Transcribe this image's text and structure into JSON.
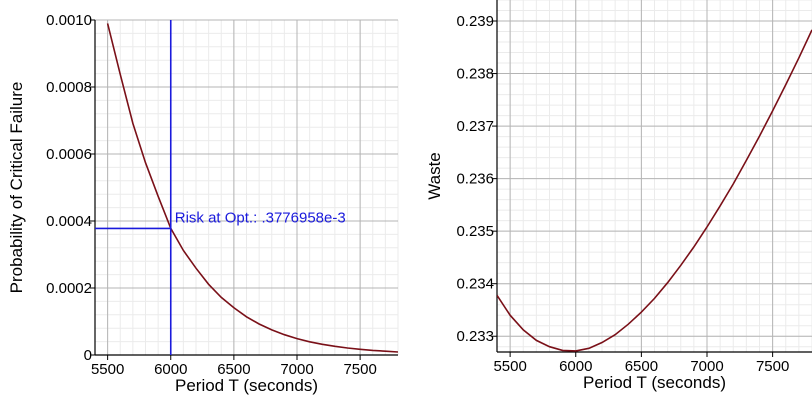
{
  "chart_data": [
    {
      "type": "line",
      "xlabel": "Period T (seconds)",
      "ylabel": "Probability of Critical Failure",
      "xlim": [
        5400,
        7800
      ],
      "ylim": [
        0,
        0.001
      ],
      "x_ticks": [
        5500,
        6000,
        6500,
        7000,
        7500
      ],
      "y_ticks": [
        0,
        0.0002,
        0.0004,
        0.0006,
        0.0008,
        0.001
      ],
      "x_tick_labels": [
        "5500",
        "6000",
        "6500",
        "7000",
        "7500"
      ],
      "y_tick_labels": [
        "0",
        "0.0002",
        "0.0004",
        "0.0006",
        "0.0008",
        "0.0010"
      ],
      "grid": true,
      "line_color": "#7a1018",
      "marker_color": "#1a1adc",
      "series": [
        {
          "x": [
            5500,
            5600,
            5700,
            5800,
            5900,
            6000,
            6100,
            6200,
            6300,
            6400,
            6500,
            6600,
            6700,
            6800,
            6900,
            7000,
            7100,
            7200,
            7300,
            7400,
            7500,
            7600,
            7700,
            7800
          ],
          "values": [
            0.00099,
            0.000837,
            0.000691,
            0.000574,
            0.000474,
            0.000378,
            0.000312,
            0.000259,
            0.000211,
            0.000172,
            0.000141,
            0.000114,
            9.25e-05,
            7.5e-05,
            6.05e-05,
            4.9e-05,
            3.95e-05,
            3.2e-05,
            2.6e-05,
            2.1e-05,
            1.7e-05,
            1.38e-05,
            1.12e-05,
            9e-06
          ]
        }
      ],
      "optimum": {
        "x": 6000,
        "y": 0.0003776958
      },
      "annotation": "Risk at Opt.: .3776958e-3"
    },
    {
      "type": "line",
      "xlabel": "Period T (seconds)",
      "ylabel": "Waste",
      "xlim": [
        5400,
        7800
      ],
      "ylim": [
        0.2327,
        0.2394
      ],
      "x_ticks": [
        5500,
        6000,
        6500,
        7000,
        7500
      ],
      "y_ticks": [
        0.233,
        0.234,
        0.235,
        0.236,
        0.237,
        0.238,
        0.239
      ],
      "x_tick_labels": [
        "5500",
        "6000",
        "6500",
        "7000",
        "7500"
      ],
      "y_tick_labels": [
        "0.233",
        "0.234",
        "0.235",
        "0.236",
        "0.237",
        "0.238",
        "0.239"
      ],
      "grid": true,
      "line_color": "#7a1018",
      "series": [
        {
          "x": [
            5400,
            5500,
            5600,
            5700,
            5800,
            5900,
            6000,
            6100,
            6200,
            6300,
            6400,
            6500,
            6600,
            6700,
            6800,
            6900,
            7000,
            7100,
            7200,
            7300,
            7400,
            7500,
            7600,
            7700,
            7800
          ],
          "values": [
            0.23378,
            0.2334,
            0.23312,
            0.23292,
            0.2328,
            0.23273,
            0.23272,
            0.23277,
            0.23288,
            0.23303,
            0.23323,
            0.23346,
            0.23372,
            0.23402,
            0.23435,
            0.2347,
            0.23508,
            0.23548,
            0.2359,
            0.23635,
            0.23681,
            0.23729,
            0.23779,
            0.2383,
            0.23883
          ]
        }
      ]
    }
  ]
}
